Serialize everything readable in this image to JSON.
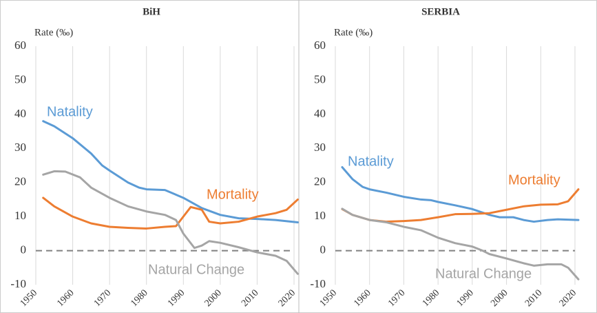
{
  "chart_data": [
    {
      "type": "line",
      "title": "BiH",
      "ylabel": "Rate (‰)",
      "ylim": [
        -10,
        60
      ],
      "yticks": [
        -10,
        0,
        10,
        20,
        30,
        40,
        50,
        60
      ],
      "xlim": [
        1950,
        2020
      ],
      "xticks": [
        1950,
        1960,
        1970,
        1980,
        1990,
        2000,
        2010,
        2020
      ],
      "grid": true,
      "series": [
        {
          "name": "Natality",
          "color": "#5b9bd5",
          "x": [
            1952,
            1955,
            1960,
            1965,
            1968,
            1970,
            1975,
            1978,
            1980,
            1985,
            1990,
            1995,
            2000,
            2005,
            2010,
            2015,
            2021
          ],
          "values": [
            38,
            36.5,
            33,
            28.5,
            25,
            23.5,
            20,
            18.5,
            18,
            17.8,
            15.5,
            12.5,
            10.5,
            9.5,
            9.3,
            9,
            8.3
          ]
        },
        {
          "name": "Mortality",
          "color": "#ed7d31",
          "x": [
            1952,
            1955,
            1960,
            1965,
            1970,
            1975,
            1980,
            1985,
            1988,
            1990,
            1992,
            1995,
            1997,
            2000,
            2005,
            2010,
            2015,
            2018,
            2021
          ],
          "values": [
            15.5,
            13,
            10,
            8,
            7,
            6.7,
            6.5,
            7,
            7.2,
            10,
            12.8,
            12,
            8.5,
            8,
            8.5,
            10,
            11,
            12,
            15
          ]
        },
        {
          "name": "Natural Change",
          "color": "#a5a5a5",
          "x": [
            1952,
            1955,
            1958,
            1962,
            1965,
            1970,
            1975,
            1980,
            1985,
            1988,
            1990,
            1993,
            1995,
            1997,
            2000,
            2005,
            2010,
            2015,
            2018,
            2021
          ],
          "values": [
            22.3,
            23.3,
            23.2,
            21.5,
            18.5,
            15.5,
            13,
            11.5,
            10.5,
            9,
            5,
            0.8,
            1.5,
            2.8,
            2.3,
            1,
            -0.5,
            -1.5,
            -3,
            -6.8
          ]
        }
      ]
    },
    {
      "type": "line",
      "title": "SERBIA",
      "ylabel": "Rate (‰)",
      "ylim": [
        -10,
        60
      ],
      "yticks": [
        -10,
        0,
        10,
        20,
        30,
        40,
        50,
        60
      ],
      "xlim": [
        1950,
        2020
      ],
      "xticks": [
        1950,
        1960,
        1970,
        1980,
        1990,
        2000,
        2010,
        2020
      ],
      "grid": true,
      "series": [
        {
          "name": "Natality",
          "color": "#5b9bd5",
          "x": [
            1952,
            1955,
            1958,
            1960,
            1965,
            1970,
            1975,
            1978,
            1980,
            1985,
            1990,
            1995,
            1998,
            2002,
            2005,
            2008,
            2012,
            2015,
            2021
          ],
          "values": [
            24.5,
            21,
            18.7,
            18,
            17,
            15.8,
            15,
            14.8,
            14.3,
            13.3,
            12.2,
            10.5,
            9.8,
            9.8,
            9,
            8.5,
            9,
            9.2,
            9
          ]
        },
        {
          "name": "Mortality",
          "color": "#ed7d31",
          "x": [
            1952,
            1955,
            1960,
            1965,
            1970,
            1975,
            1980,
            1985,
            1990,
            1995,
            2000,
            2005,
            2010,
            2015,
            2018,
            2021
          ],
          "values": [
            12.2,
            10.5,
            9,
            8.5,
            8.7,
            9,
            9.8,
            10.7,
            10.8,
            11,
            12,
            13,
            13.5,
            13.6,
            14.5,
            18
          ]
        },
        {
          "name": "Natural Change",
          "color": "#a5a5a5",
          "x": [
            1952,
            1955,
            1960,
            1965,
            1970,
            1975,
            1980,
            1985,
            1990,
            1993,
            1995,
            2000,
            2005,
            2008,
            2012,
            2016,
            2018,
            2021
          ],
          "values": [
            12.3,
            10.5,
            9,
            8.3,
            7,
            6,
            3.8,
            2.2,
            1.2,
            0,
            -1,
            -2.3,
            -3.7,
            -4.4,
            -4,
            -4,
            -5,
            -8.4
          ]
        }
      ]
    }
  ]
}
